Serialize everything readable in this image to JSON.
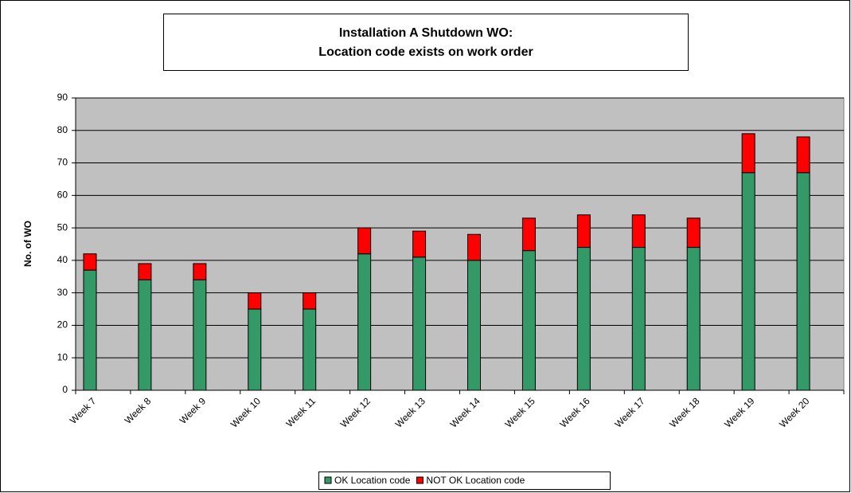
{
  "chart_data": {
    "type": "stacked-bar",
    "title": [
      "Installation A Shutdown WO:",
      "Location code exists on work order"
    ],
    "y_label": "No. of WO",
    "categories": [
      "Week 7",
      "Week 8",
      "Week 9",
      "Week 10",
      "Week 11",
      "Week 12",
      "Week 13",
      "Week 14",
      "Week 15",
      "Week 16",
      "Week 17",
      "Week 18",
      "Week 19",
      "Week 20"
    ],
    "series": [
      {
        "name": "OK Location code",
        "color": "#339966",
        "values": [
          37,
          34,
          34,
          25,
          25,
          42,
          41,
          40,
          43,
          44,
          44,
          44,
          67,
          67
        ]
      },
      {
        "name": "NOT OK Location code",
        "color": "#ff0000",
        "values": [
          5,
          5,
          5,
          5,
          5,
          8,
          8,
          8,
          10,
          10,
          10,
          9,
          12,
          11
        ]
      }
    ],
    "ylim": [
      0,
      90
    ],
    "yticks": [
      0,
      10,
      20,
      30,
      40,
      50,
      60,
      70,
      80,
      90
    ],
    "grid": true,
    "legend": "bottom"
  }
}
